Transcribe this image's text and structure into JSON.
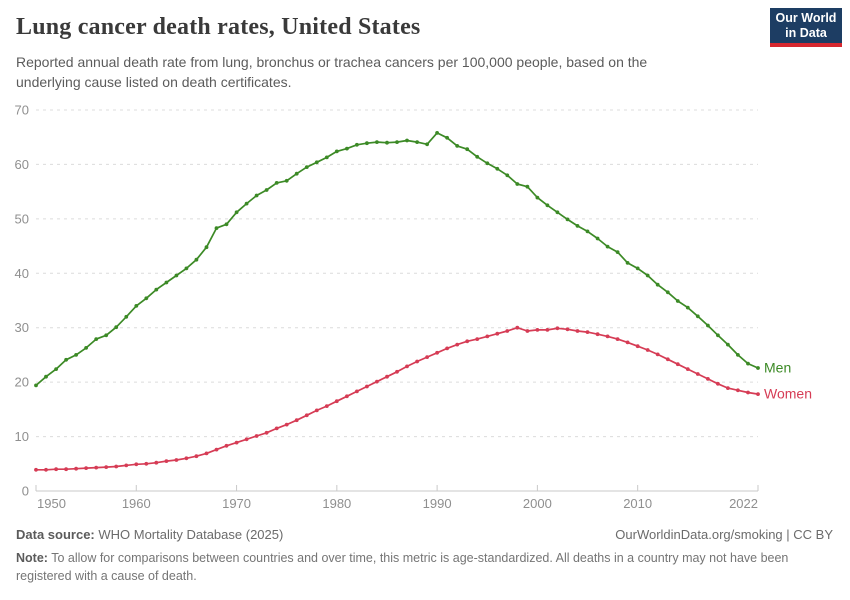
{
  "header": {
    "logo": {
      "line1": "Our World",
      "line2": "in Data",
      "bg_color": "#1d3d63",
      "bar_color": "#d7282f"
    }
  },
  "chart_data": {
    "type": "line",
    "title": "Lung cancer death rates, United States",
    "subtitle": "Reported annual death rate from lung, bronchus or trachea cancers per 100,000 people, based on the underlying cause listed on death certificates.",
    "xlabel": "",
    "ylabel": "",
    "xlim": [
      1950,
      2022
    ],
    "ylim": [
      0,
      70
    ],
    "yticks": [
      0,
      10,
      20,
      30,
      40,
      50,
      60,
      70
    ],
    "xticks": [
      1950,
      1960,
      1970,
      1980,
      1990,
      2000,
      2010,
      2022
    ],
    "grid": "horizontal-dashed",
    "legend_position": "line-end-labels",
    "marker": "dot",
    "x": [
      1950,
      1951,
      1952,
      1953,
      1954,
      1955,
      1956,
      1957,
      1958,
      1959,
      1960,
      1961,
      1962,
      1963,
      1964,
      1965,
      1966,
      1967,
      1968,
      1969,
      1970,
      1971,
      1972,
      1973,
      1974,
      1975,
      1976,
      1977,
      1978,
      1979,
      1980,
      1981,
      1982,
      1983,
      1984,
      1985,
      1986,
      1987,
      1988,
      1989,
      1990,
      1991,
      1992,
      1993,
      1994,
      1995,
      1996,
      1997,
      1998,
      1999,
      2000,
      2001,
      2002,
      2003,
      2004,
      2005,
      2006,
      2007,
      2008,
      2009,
      2010,
      2011,
      2012,
      2013,
      2014,
      2015,
      2016,
      2017,
      2018,
      2019,
      2020,
      2021,
      2022
    ],
    "series": [
      {
        "name": "Men",
        "color": "#3c8a26",
        "values": [
          19.4,
          21.0,
          22.4,
          24.1,
          25.0,
          26.3,
          27.9,
          28.6,
          30.1,
          32.0,
          34.0,
          35.4,
          37.0,
          38.3,
          39.6,
          40.9,
          42.5,
          44.8,
          48.3,
          49.0,
          51.2,
          52.8,
          54.3,
          55.3,
          56.6,
          57.0,
          58.3,
          59.5,
          60.4,
          61.3,
          62.4,
          62.9,
          63.6,
          63.9,
          64.1,
          64.0,
          64.1,
          64.4,
          64.1,
          63.7,
          65.8,
          64.9,
          63.4,
          62.8,
          61.4,
          60.2,
          59.2,
          58.0,
          56.4,
          55.9,
          53.9,
          52.5,
          51.2,
          49.9,
          48.7,
          47.7,
          46.4,
          44.9,
          43.9,
          41.9,
          40.9,
          39.6,
          37.9,
          36.5,
          34.9,
          33.7,
          32.1,
          30.4,
          28.6,
          26.9,
          25.0,
          23.4,
          22.6
        ]
      },
      {
        "name": "Women",
        "color": "#d63c55",
        "values": [
          3.9,
          3.9,
          4.0,
          4.0,
          4.1,
          4.2,
          4.3,
          4.4,
          4.5,
          4.7,
          4.9,
          5.0,
          5.2,
          5.5,
          5.7,
          6.0,
          6.4,
          6.9,
          7.6,
          8.3,
          8.9,
          9.5,
          10.1,
          10.7,
          11.5,
          12.2,
          13.0,
          13.9,
          14.8,
          15.6,
          16.5,
          17.4,
          18.3,
          19.2,
          20.1,
          21.0,
          21.9,
          22.9,
          23.8,
          24.6,
          25.4,
          26.2,
          26.9,
          27.5,
          27.9,
          28.4,
          28.9,
          29.4,
          30.0,
          29.4,
          29.6,
          29.6,
          29.9,
          29.7,
          29.4,
          29.2,
          28.8,
          28.4,
          27.9,
          27.3,
          26.6,
          25.9,
          25.1,
          24.2,
          23.3,
          22.4,
          21.5,
          20.6,
          19.7,
          18.9,
          18.5,
          18.1,
          17.8
        ]
      }
    ]
  },
  "footer": {
    "datasource_label": "Data source:",
    "datasource_value": " WHO Mortality Database (2025)",
    "link_text": "OurWorldinData.org/smoking | CC BY",
    "note_label": "Note:",
    "note_text": " To allow for comparisons between countries and over time, this metric is age-standardized. All deaths in a country may not have been registered with a cause of death."
  }
}
